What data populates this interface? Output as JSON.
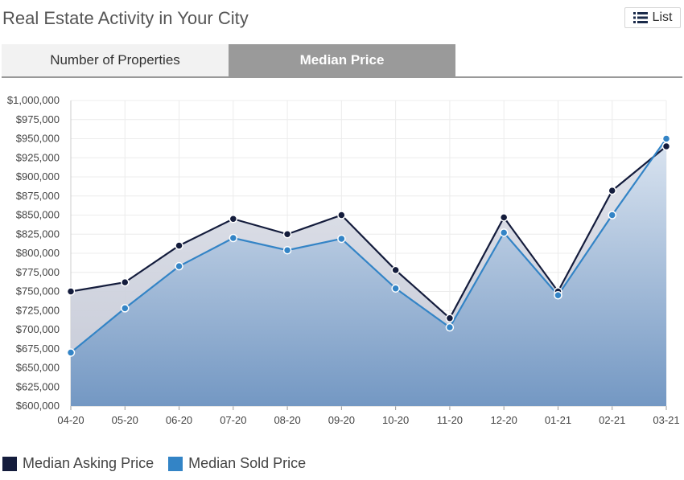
{
  "header": {
    "title": "Real Estate Activity in Your City",
    "list_button_label": "List",
    "list_icon": "list-icon"
  },
  "tabs": [
    {
      "label": "Number of Properties",
      "active": false
    },
    {
      "label": "Median Price",
      "active": true
    }
  ],
  "colors": {
    "asking": "#141c3c",
    "sold": "#3384c6",
    "grid": "#ececec",
    "axis_text": "#444444"
  },
  "chart_data": {
    "type": "area",
    "categories": [
      "04-20",
      "05-20",
      "06-20",
      "07-20",
      "08-20",
      "09-20",
      "10-20",
      "11-20",
      "12-20",
      "01-21",
      "02-21",
      "03-21"
    ],
    "series": [
      {
        "name": "Median Asking Price",
        "values": [
          750000,
          762000,
          810000,
          845000,
          825000,
          850000,
          778000,
          715000,
          847000,
          750000,
          882000,
          940000
        ]
      },
      {
        "name": "Median Sold Price",
        "values": [
          670000,
          728000,
          783000,
          820000,
          804000,
          819000,
          754000,
          703000,
          827000,
          745000,
          850000,
          950000
        ]
      }
    ],
    "ylim": [
      600000,
      1000000
    ],
    "yticks": [
      "$600,000",
      "$625,000",
      "$650,000",
      "$675,000",
      "$700,000",
      "$725,000",
      "$750,000",
      "$775,000",
      "$800,000",
      "$825,000",
      "$850,000",
      "$875,000",
      "$900,000",
      "$925,000",
      "$950,000",
      "$975,000",
      "$1,000,000"
    ],
    "grid": true,
    "legend_position": "bottom-left"
  },
  "legend": [
    {
      "label": "Median Asking Price"
    },
    {
      "label": "Median Sold Price"
    }
  ]
}
